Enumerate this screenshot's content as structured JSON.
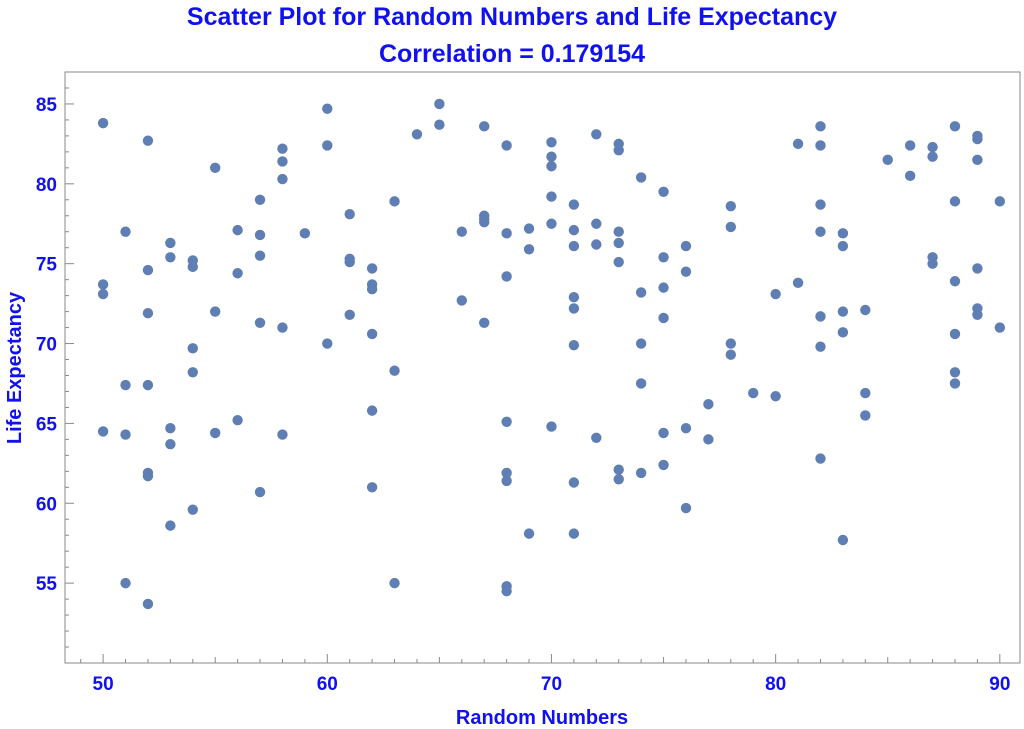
{
  "chart_data": {
    "type": "scatter",
    "title": "Scatter Plot for Random Numbers and Life Expectancy",
    "subtitle": "Correlation = 0.179154",
    "xlabel": "Random Numbers",
    "ylabel": "Life Expectancy",
    "xlim": [
      48.3,
      90.9
    ],
    "ylim": [
      50,
      87
    ],
    "xticks": [
      "50",
      "60",
      "70",
      "80",
      "90"
    ],
    "yticks": [
      "55",
      "60",
      "65",
      "70",
      "75",
      "80",
      "85"
    ],
    "grid": false,
    "point_color": "#5f7fb4",
    "text_color": "#1010f0",
    "points": [
      [
        50,
        83.8
      ],
      [
        50,
        73.7
      ],
      [
        50,
        73.1
      ],
      [
        50,
        64.5
      ],
      [
        51,
        77.0
      ],
      [
        51,
        67.4
      ],
      [
        51,
        64.3
      ],
      [
        51,
        55.0
      ],
      [
        52,
        82.7
      ],
      [
        52,
        74.6
      ],
      [
        52,
        71.9
      ],
      [
        52,
        67.4
      ],
      [
        52,
        61.9
      ],
      [
        52,
        61.7
      ],
      [
        52,
        53.7
      ],
      [
        53,
        76.3
      ],
      [
        53,
        75.4
      ],
      [
        53,
        64.7
      ],
      [
        53,
        63.7
      ],
      [
        53,
        58.6
      ],
      [
        54,
        75.2
      ],
      [
        54,
        74.8
      ],
      [
        54,
        69.7
      ],
      [
        54,
        68.2
      ],
      [
        54,
        59.6
      ],
      [
        55,
        81.0
      ],
      [
        55,
        72.0
      ],
      [
        55,
        64.4
      ],
      [
        56,
        77.1
      ],
      [
        56,
        74.4
      ],
      [
        56,
        65.2
      ],
      [
        57,
        79.0
      ],
      [
        57,
        76.8
      ],
      [
        57,
        75.5
      ],
      [
        57,
        71.3
      ],
      [
        57,
        60.7
      ],
      [
        58,
        82.2
      ],
      [
        58,
        81.4
      ],
      [
        58,
        80.3
      ],
      [
        58,
        71.0
      ],
      [
        58,
        64.3
      ],
      [
        59,
        76.9
      ],
      [
        60,
        84.7
      ],
      [
        60,
        82.4
      ],
      [
        60,
        70.0
      ],
      [
        61,
        78.1
      ],
      [
        61,
        75.3
      ],
      [
        61,
        75.1
      ],
      [
        61,
        71.8
      ],
      [
        62,
        74.7
      ],
      [
        62,
        73.7
      ],
      [
        62,
        73.4
      ],
      [
        62,
        70.6
      ],
      [
        62,
        65.8
      ],
      [
        62,
        61.0
      ],
      [
        63,
        78.9
      ],
      [
        63,
        68.3
      ],
      [
        63,
        55.0
      ],
      [
        64,
        83.1
      ],
      [
        65,
        85.0
      ],
      [
        65,
        83.7
      ],
      [
        66,
        77.0
      ],
      [
        66,
        72.7
      ],
      [
        67,
        83.6
      ],
      [
        67,
        78.0
      ],
      [
        67,
        77.8
      ],
      [
        67,
        77.6
      ],
      [
        67,
        71.3
      ],
      [
        68,
        82.4
      ],
      [
        68,
        76.9
      ],
      [
        68,
        74.2
      ],
      [
        68,
        65.1
      ],
      [
        68,
        61.9
      ],
      [
        68,
        61.4
      ],
      [
        68,
        54.8
      ],
      [
        68,
        54.5
      ],
      [
        69,
        77.2
      ],
      [
        69,
        75.9
      ],
      [
        69,
        58.1
      ],
      [
        70,
        82.6
      ],
      [
        70,
        81.7
      ],
      [
        70,
        81.1
      ],
      [
        70,
        79.2
      ],
      [
        70,
        77.5
      ],
      [
        70,
        64.8
      ],
      [
        71,
        78.7
      ],
      [
        71,
        77.1
      ],
      [
        71,
        76.1
      ],
      [
        71,
        72.9
      ],
      [
        71,
        72.2
      ],
      [
        71,
        69.9
      ],
      [
        71,
        61.3
      ],
      [
        71,
        58.1
      ],
      [
        72,
        83.1
      ],
      [
        72,
        77.5
      ],
      [
        72,
        76.2
      ],
      [
        72,
        64.1
      ],
      [
        73,
        82.5
      ],
      [
        73,
        82.1
      ],
      [
        73,
        77.0
      ],
      [
        73,
        76.3
      ],
      [
        73,
        75.1
      ],
      [
        73,
        62.1
      ],
      [
        73,
        61.5
      ],
      [
        74,
        80.4
      ],
      [
        74,
        73.2
      ],
      [
        74,
        70.0
      ],
      [
        74,
        67.5
      ],
      [
        74,
        61.9
      ],
      [
        75,
        79.5
      ],
      [
        75,
        75.4
      ],
      [
        75,
        73.5
      ],
      [
        75,
        71.6
      ],
      [
        75,
        64.4
      ],
      [
        75,
        62.4
      ],
      [
        76,
        76.1
      ],
      [
        76,
        74.5
      ],
      [
        76,
        64.7
      ],
      [
        76,
        59.7
      ],
      [
        77,
        66.2
      ],
      [
        77,
        64.0
      ],
      [
        78,
        78.6
      ],
      [
        78,
        77.3
      ],
      [
        78,
        70.0
      ],
      [
        78,
        69.3
      ],
      [
        79,
        66.9
      ],
      [
        80,
        73.1
      ],
      [
        80,
        66.7
      ],
      [
        81,
        82.5
      ],
      [
        81,
        73.8
      ],
      [
        82,
        83.6
      ],
      [
        82,
        82.4
      ],
      [
        82,
        78.7
      ],
      [
        82,
        77.0
      ],
      [
        82,
        71.7
      ],
      [
        82,
        69.8
      ],
      [
        82,
        62.8
      ],
      [
        83,
        76.9
      ],
      [
        83,
        76.1
      ],
      [
        83,
        72.0
      ],
      [
        83,
        70.7
      ],
      [
        83,
        57.7
      ],
      [
        84,
        72.1
      ],
      [
        84,
        66.9
      ],
      [
        84,
        65.5
      ],
      [
        85,
        81.5
      ],
      [
        86,
        82.4
      ],
      [
        86,
        80.5
      ],
      [
        87,
        82.3
      ],
      [
        87,
        81.7
      ],
      [
        87,
        75.4
      ],
      [
        87,
        75.0
      ],
      [
        88,
        83.6
      ],
      [
        88,
        78.9
      ],
      [
        88,
        73.9
      ],
      [
        88,
        70.6
      ],
      [
        88,
        68.2
      ],
      [
        88,
        67.5
      ],
      [
        89,
        83.0
      ],
      [
        89,
        82.8
      ],
      [
        89,
        81.5
      ],
      [
        89,
        74.7
      ],
      [
        89,
        72.2
      ],
      [
        89,
        71.8
      ],
      [
        90,
        78.9
      ],
      [
        90,
        71.0
      ]
    ]
  }
}
